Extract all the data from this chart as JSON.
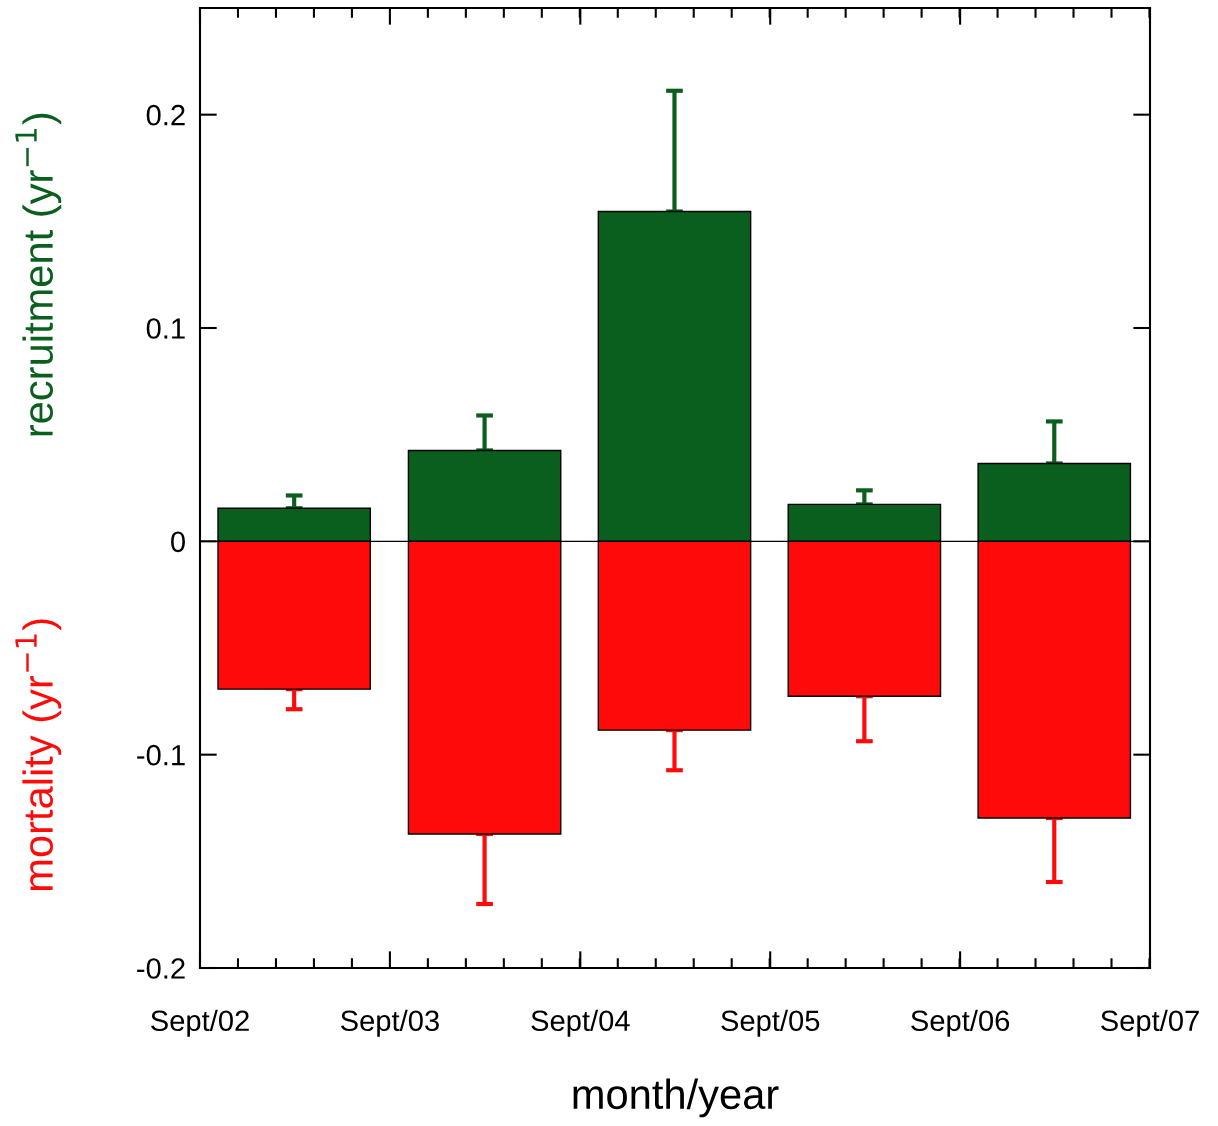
{
  "chart_data": {
    "type": "bar",
    "xlabel": "month/year",
    "x": [
      "2003-03",
      "2004-03",
      "2005-03",
      "2006-03",
      "2007-03"
    ],
    "stacked": true,
    "series": [
      {
        "name": "recruitment (yr$^{−1}$)",
        "color": "#0a5f1e",
        "values": [
          0.0155,
          0.0426,
          0.1546,
          0.0173,
          0.0365
        ],
        "errors": [
          [
            0.0155,
            0.0215
          ],
          [
            0.0426,
            0.059
          ],
          [
            0.1546,
            0.2112
          ],
          [
            0.0173,
            0.0239
          ],
          [
            0.0365,
            0.0562
          ]
        ]
      },
      {
        "name": "mortality (yr$^{−1}$)",
        "color": "#ff0a0a",
        "values": [
          -0.0693,
          -0.1372,
          -0.0885,
          -0.0726,
          -0.1297
        ],
        "errors": [
          [
            -0.0787,
            -0.0693
          ],
          [
            -0.17,
            -0.1372
          ],
          [
            -0.1073,
            -0.0885
          ],
          [
            -0.0937,
            -0.0726
          ],
          [
            -0.1597,
            -0.1297
          ]
        ]
      }
    ],
    "xlim": [
      "2002-09",
      "2007-09"
    ],
    "xticks": [
      {
        "value": "2002-09",
        "label": "Sept/02"
      },
      {
        "value": "2003-09",
        "label": "Sept/03"
      },
      {
        "value": "2004-09",
        "label": "Sept/04"
      },
      {
        "value": "2005-09",
        "label": "Sept/05"
      },
      {
        "value": "2006-09",
        "label": "Sept/06"
      },
      {
        "value": "2007-09",
        "label": "Sept/07"
      }
    ],
    "ylim": [
      -0.2,
      0.25
    ],
    "yticks": [
      -0.2,
      -0.1,
      0,
      0.1,
      0.2
    ],
    "ref_lines": [
      {
        "axis": "y",
        "value": 0,
        "color": "#000000"
      }
    ],
    "grid": false,
    "legend": false
  }
}
